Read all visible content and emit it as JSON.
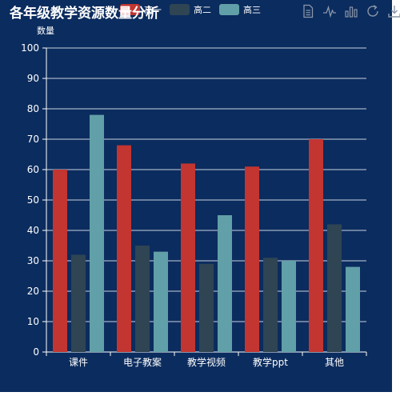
{
  "chart_data": {
    "type": "bar",
    "title": "各年级教学资源数量分析",
    "ylabel": "数量",
    "xlabel": "",
    "ylim": [
      0,
      100
    ],
    "ytick_step": 10,
    "grid": true,
    "legend_position": "top",
    "categories": [
      "课件",
      "电子教案",
      "教学视频",
      "教学ppt",
      "其他"
    ],
    "series": [
      {
        "name": "高一",
        "color": "#c23531",
        "values": [
          60,
          68,
          62,
          61,
          70
        ]
      },
      {
        "name": "高二",
        "color": "#2f4554",
        "values": [
          32,
          35,
          29,
          31,
          42
        ]
      },
      {
        "name": "高三",
        "color": "#61a0a8",
        "values": [
          78,
          33,
          45,
          30,
          28
        ]
      }
    ]
  },
  "toolbox": {
    "icons": [
      "data-view-icon",
      "line-chart-icon",
      "bar-chart-icon",
      "restore-icon",
      "save-image-icon"
    ],
    "color": "#8a96a8"
  },
  "colors": {
    "background": "#0b2c5e",
    "text": "#ffffff"
  }
}
